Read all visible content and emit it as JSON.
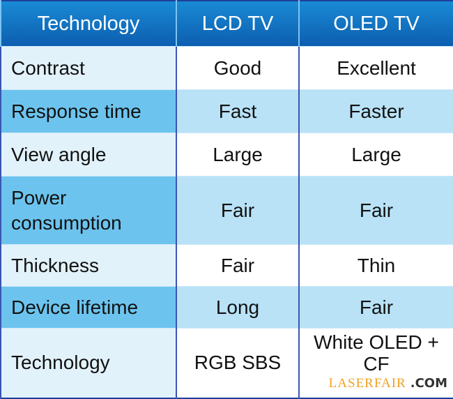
{
  "columns": [
    "Technology",
    "LCD TV",
    "OLED TV"
  ],
  "rows": [
    {
      "feature": "Contrast",
      "lcd": "Good",
      "oled": "Excellent"
    },
    {
      "feature": "Response time",
      "lcd": "Fast",
      "oled": "Faster"
    },
    {
      "feature": "View angle",
      "lcd": "Large",
      "oled": "Large"
    },
    {
      "feature": "Power consumption",
      "lcd": "Fair",
      "oled": "Fair"
    },
    {
      "feature": "Thickness",
      "lcd": "Fair",
      "oled": "Thin"
    },
    {
      "feature": "Device lifetime",
      "lcd": "Long",
      "oled": "Fair"
    },
    {
      "feature": "Technology",
      "lcd": "RGB SBS",
      "oled": "White OLED + CF"
    }
  ],
  "watermark": {
    "brand": "LASERFAIR",
    "suffix": ".COM"
  },
  "colors": {
    "header": "#0c5eb0",
    "accent_row": "#6cc4ee",
    "light_row": "#b9e2f7"
  }
}
